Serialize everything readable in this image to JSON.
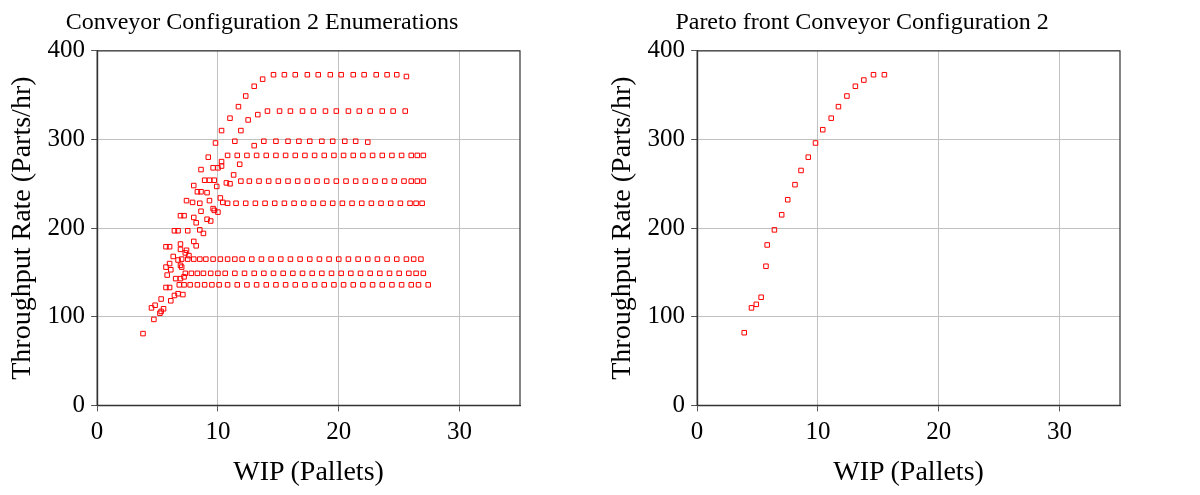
{
  "chart_data": [
    {
      "type": "scatter",
      "title": "Conveyor Configuration 2 Enumerations",
      "xlabel": "WIP (Pallets)",
      "ylabel": "Throughput Rate (Parts/hr)",
      "xlim": [
        0,
        35
      ],
      "xticks": [
        0,
        10,
        20,
        30
      ],
      "ylim": [
        0,
        400
      ],
      "yticks": [
        0,
        100,
        200,
        300,
        400
      ],
      "grid": true,
      "legend": false,
      "marker": "square",
      "series": [
        {
          "color": "#ff0000",
          "x": [
            3.8,
            4.7,
            4.5,
            5.2,
            5.3,
            5.5,
            4.8,
            6.1,
            5.3,
            6.4,
            6.7,
            7.1,
            5.7,
            6.0,
            6.5,
            6.9,
            7.2,
            5.8,
            6.1,
            5.7,
            7.0,
            6.9,
            6.0,
            6.3,
            6.7,
            7.6,
            7.3,
            7.4,
            6.9,
            5.7,
            6.0,
            6.9,
            8.2,
            8.0,
            8.8,
            6.4,
            6.7,
            7.5,
            8.5,
            9.1,
            9.4,
            8.2,
            8.0,
            6.9,
            7.2,
            8.6,
            9.6,
            9.7,
            10.0,
            7.4,
            7.9,
            8.5,
            9.3,
            10.2,
            8.3,
            8.6,
            9.1,
            8.0,
            9.9,
            8.9,
            9.3,
            9.7,
            10.7,
            11.0,
            11.3,
            9.6,
            10.0,
            10.3,
            10.3,
            11.8,
            8.6,
            9.2,
            9.8,
            11.4,
            13.0,
            10.3,
            11.0,
            11.7,
            12.3,
            13.0,
            13.7,
            11.9,
            12.5
          ],
          "values": [
            81,
            97,
            110,
            104,
            106,
            109,
            113,
            118,
            120,
            124,
            126,
            125,
            133,
            133,
            143,
            143,
            145,
            147,
            153,
            156,
            156,
            158,
            160,
            168,
            164,
            169,
            172,
            175,
            176,
            179,
            179,
            182,
            180,
            185,
            194,
            197,
            197,
            197,
            198,
            210,
            208,
            206,
            212,
            214,
            214,
            219,
            222,
            220,
            218,
            231,
            229,
            228,
            231,
            234,
            241,
            241,
            240,
            248,
            247,
            254,
            254,
            254,
            251,
            250,
            260,
            268,
            268,
            270,
            275,
            272,
            266,
            280,
            296,
            298,
            293,
            310,
            324,
            337,
            349,
            360,
            368,
            310,
            322
          ]
        },
        {
          "color": "#ff0000",
          "x": [
            14.6,
            15.5,
            16.4,
            17.4,
            18.3,
            19.3,
            20.2,
            21.2,
            22.1,
            23.1,
            24.0,
            24.8,
            25.6
          ],
          "values": [
            373,
            373,
            373,
            373,
            373,
            373,
            373,
            373,
            373,
            373,
            373,
            373,
            371
          ]
        },
        {
          "color": "#ff0000",
          "x": [
            13.3,
            14.1,
            15.1,
            16.0,
            17.0,
            17.9,
            18.9,
            19.8,
            20.8,
            21.7,
            22.6,
            23.6,
            24.5,
            25.5
          ],
          "values": [
            328,
            332,
            332,
            332,
            332,
            332,
            332,
            332,
            332,
            332,
            332,
            332,
            332,
            332
          ]
        },
        {
          "color": "#ff0000",
          "x": [
            13.8,
            14.8,
            15.8,
            16.7,
            17.6,
            18.6,
            19.5,
            20.5,
            21.4,
            22.4
          ],
          "values": [
            298,
            298,
            298,
            298,
            298,
            298,
            298,
            298,
            298,
            297
          ]
        },
        {
          "color": "#ff0000",
          "x": [
            10.8,
            11.6,
            12.4,
            13.2,
            14.0,
            14.8,
            15.6,
            16.4,
            17.2,
            18.0,
            18.8,
            19.6,
            20.4,
            21.2,
            22.0,
            22.8,
            23.6,
            24.4,
            25.2,
            26.0,
            26.5,
            27.0
          ],
          "values": [
            282,
            282,
            282,
            282,
            282,
            282,
            282,
            282,
            282,
            282,
            282,
            282,
            282,
            282,
            282,
            282,
            282,
            282,
            282,
            282,
            282,
            282
          ]
        },
        {
          "color": "#ff0000",
          "x": [
            11.9,
            12.6,
            13.4,
            14.2,
            15.0,
            15.8,
            16.6,
            17.4,
            18.2,
            19.0,
            19.8,
            20.6,
            21.4,
            22.2,
            23.0,
            23.8,
            24.6,
            25.4,
            26.0,
            26.5,
            27.0
          ],
          "values": [
            253,
            253,
            253,
            253,
            253,
            253,
            253,
            253,
            253,
            253,
            253,
            253,
            253,
            253,
            253,
            253,
            253,
            253,
            253,
            253,
            253
          ]
        },
        {
          "color": "#ff0000",
          "x": [
            10.4,
            10.8,
            11.5,
            12.3,
            13.1,
            13.9,
            14.7,
            15.5,
            16.3,
            17.1,
            17.9,
            18.7,
            19.5,
            20.3,
            21.1,
            21.9,
            22.7,
            23.5,
            24.3,
            25.1,
            25.9,
            26.4,
            26.9
          ],
          "values": [
            229,
            228,
            228,
            228,
            228,
            228,
            228,
            228,
            228,
            228,
            228,
            228,
            228,
            228,
            228,
            228,
            228,
            228,
            228,
            228,
            228,
            228,
            228
          ]
        },
        {
          "color": "#ff0000",
          "x": [
            7.0,
            7.5,
            8.0,
            8.5,
            9.0,
            9.6,
            10.2,
            10.8,
            11.4,
            12.0,
            12.8,
            13.6,
            14.4,
            15.2,
            16.0,
            16.8,
            17.6,
            18.4,
            19.2,
            20.0,
            20.8,
            21.6,
            22.4,
            23.2,
            24.0,
            24.8,
            25.6,
            26.2,
            26.8
          ],
          "values": [
            165,
            165,
            165,
            165,
            165,
            165,
            165,
            165,
            165,
            165,
            165,
            165,
            165,
            165,
            165,
            165,
            165,
            165,
            165,
            165,
            165,
            165,
            165,
            165,
            165,
            165,
            165,
            165,
            165
          ]
        },
        {
          "color": "#ff0000",
          "x": [
            7.3,
            7.8,
            8.3,
            8.8,
            9.4,
            10.0,
            10.6,
            11.4,
            12.2,
            13.0,
            13.8,
            14.6,
            15.4,
            16.2,
            17.0,
            17.8,
            18.6,
            19.4,
            20.2,
            21.0,
            21.8,
            22.6,
            23.4,
            24.2,
            25.0,
            25.8,
            26.4,
            27.0
          ],
          "values": [
            149,
            149,
            149,
            149,
            149,
            149,
            149,
            149,
            149,
            149,
            149,
            149,
            149,
            149,
            149,
            149,
            149,
            149,
            149,
            149,
            149,
            149,
            149,
            149,
            149,
            149,
            149,
            149
          ]
        },
        {
          "color": "#ff0000",
          "x": [
            6.8,
            7.2,
            7.7,
            8.3,
            8.9,
            9.5,
            10.1,
            10.8,
            11.6,
            12.4,
            13.2,
            14.0,
            14.8,
            15.6,
            16.4,
            17.2,
            18.0,
            18.8,
            19.6,
            20.4,
            21.2,
            22.0,
            22.8,
            23.6,
            24.4,
            25.2,
            26.0,
            26.6,
            27.4
          ],
          "values": [
            136,
            136,
            136,
            136,
            136,
            136,
            136,
            136,
            136,
            136,
            136,
            136,
            136,
            136,
            136,
            136,
            136,
            136,
            136,
            136,
            136,
            136,
            136,
            136,
            136,
            136,
            136,
            136,
            136
          ]
        }
      ]
    },
    {
      "type": "scatter",
      "title": "Pareto front Conveyor Configuration 2",
      "xlabel": "WIP (Pallets)",
      "ylabel": "Throughput Rate (Parts/hr)",
      "xlim": [
        0,
        35
      ],
      "xticks": [
        0,
        10,
        20,
        30
      ],
      "ylim": [
        0,
        400
      ],
      "yticks": [
        0,
        100,
        200,
        300,
        400
      ],
      "grid": true,
      "legend": false,
      "marker": "square",
      "series": [
        {
          "color": "#ff0000",
          "x": [
            3.9,
            4.5,
            4.9,
            5.3,
            5.7,
            5.8,
            6.4,
            7.0,
            7.5,
            8.1,
            8.6,
            9.2,
            9.8,
            10.4,
            11.1,
            11.7,
            12.4,
            13.1,
            13.8,
            14.6,
            15.5
          ],
          "values": [
            82,
            110,
            114,
            122,
            157,
            181,
            198,
            215,
            232,
            249,
            265,
            280,
            296,
            311,
            324,
            337,
            349,
            360,
            367,
            373,
            373
          ]
        }
      ]
    }
  ]
}
